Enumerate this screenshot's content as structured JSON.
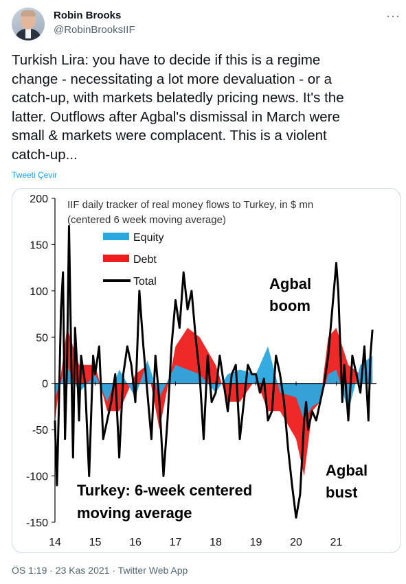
{
  "author": {
    "name": "Robin Brooks",
    "handle": "@RobinBrooksIIF"
  },
  "tweet": {
    "lines": [
      "Turkish Lira: you have to decide if this is a regime",
      "change - necessitating a lot more devaluation - or a",
      "catch-up, with markets belatedly pricing news. It's the",
      "latter. Outflows after Agbal's dismissal in March were",
      "small & markets were complacent. This is a violent",
      "catch-up..."
    ],
    "translate_label": "Tweeti Çevir"
  },
  "footer": {
    "timestamp": "ÖS 1:19 · 23 Kas 2021",
    "dot": " · ",
    "source": "Twitter Web App"
  },
  "colors": {
    "equity": "#29a8e0",
    "debt": "#ee1c1c",
    "total": "#000000"
  },
  "chart_data": {
    "type": "area",
    "title_lines": [
      "IIF daily tracker of real money flows to Turkey, in $ mn",
      "(centered 6 week moving average)"
    ],
    "legend": [
      "Equity",
      "Debt",
      "Total"
    ],
    "legend_position": "top-left",
    "y_ticks": [
      "200",
      "150",
      "100",
      "50",
      "0",
      "-50",
      "-100",
      "-150"
    ],
    "ylim": [
      -150,
      200
    ],
    "x_ticks": [
      "14",
      "15",
      "16",
      "17",
      "18",
      "19",
      "20",
      "21"
    ],
    "xlim": [
      14,
      22
    ],
    "grid": false,
    "annotations": {
      "boom": [
        "Agbal",
        "boom"
      ],
      "bust": [
        "Agbal",
        "bust"
      ],
      "caption": [
        "Turkey: 6-week centered",
        "moving average"
      ]
    },
    "series": [
      {
        "name": "Total",
        "x": [
          14.0,
          14.05,
          14.1,
          14.15,
          14.2,
          14.25,
          14.3,
          14.35,
          14.4,
          14.45,
          14.5,
          14.55,
          14.6,
          14.65,
          14.75,
          14.85,
          14.95,
          15.0,
          15.1,
          15.2,
          15.3,
          15.4,
          15.5,
          15.6,
          15.7,
          15.8,
          15.9,
          16.0,
          16.1,
          16.2,
          16.3,
          16.4,
          16.5,
          16.6,
          16.7,
          16.8,
          16.9,
          17.0,
          17.1,
          17.2,
          17.3,
          17.4,
          17.5,
          17.6,
          17.7,
          17.8,
          17.9,
          18.0,
          18.1,
          18.2,
          18.3,
          18.4,
          18.5,
          18.6,
          18.7,
          18.8,
          18.9,
          19.0,
          19.1,
          19.2,
          19.3,
          19.4,
          19.5,
          19.6,
          19.7,
          19.8,
          19.9,
          20.0,
          20.1,
          20.15,
          20.2,
          20.25,
          20.3,
          20.4,
          20.5,
          20.6,
          20.7,
          20.8,
          20.9,
          21.0,
          21.05,
          21.1,
          21.15,
          21.2,
          21.3,
          21.4,
          21.5,
          21.6,
          21.7,
          21.75,
          21.8,
          21.85,
          21.9
        ],
        "values": [
          -40,
          -110,
          -20,
          80,
          120,
          -60,
          20,
          170,
          40,
          -80,
          60,
          20,
          -40,
          30,
          0,
          -100,
          30,
          10,
          40,
          -60,
          -40,
          -20,
          10,
          -80,
          10,
          40,
          20,
          -20,
          100,
          40,
          -10,
          -60,
          30,
          -20,
          -100,
          -40,
          40,
          90,
          60,
          120,
          80,
          100,
          50,
          10,
          -60,
          30,
          -20,
          -10,
          30,
          0,
          -30,
          10,
          20,
          -60,
          -20,
          20,
          10,
          10,
          -10,
          5,
          -40,
          -30,
          30,
          10,
          -20,
          -70,
          -110,
          -145,
          -120,
          -80,
          -40,
          -20,
          -50,
          -30,
          -40,
          -20,
          0,
          30,
          80,
          130,
          100,
          40,
          -20,
          20,
          -40,
          30,
          10,
          -10,
          40,
          0,
          -40,
          30,
          58
        ]
      },
      {
        "name": "Equity",
        "x": [
          14.0,
          14.3,
          14.6,
          15.0,
          15.3,
          15.6,
          16.0,
          16.3,
          16.6,
          17.0,
          17.3,
          17.6,
          18.0,
          18.3,
          18.6,
          19.0,
          19.3,
          19.6,
          20.0,
          20.2,
          20.4,
          20.6,
          20.8,
          21.0,
          21.3,
          21.6,
          21.9
        ],
        "values": [
          -15,
          20,
          -10,
          10,
          -20,
          15,
          -15,
          25,
          -15,
          20,
          15,
          10,
          -10,
          10,
          15,
          10,
          40,
          -10,
          -15,
          -40,
          -25,
          -20,
          10,
          15,
          -30,
          20,
          30
        ]
      },
      {
        "name": "Debt",
        "x": [
          14.0,
          14.3,
          14.6,
          15.0,
          15.3,
          15.6,
          16.0,
          16.3,
          16.6,
          17.0,
          17.3,
          17.6,
          18.0,
          18.3,
          18.6,
          19.0,
          19.3,
          19.6,
          20.0,
          20.2,
          20.4,
          20.6,
          20.8,
          21.0,
          21.3,
          21.6,
          21.9
        ],
        "values": [
          -40,
          60,
          20,
          20,
          -30,
          -30,
          10,
          20,
          -50,
          40,
          60,
          50,
          20,
          -20,
          -20,
          5,
          -30,
          -30,
          -60,
          -100,
          -30,
          -20,
          50,
          60,
          20,
          10,
          15
        ]
      }
    ]
  }
}
